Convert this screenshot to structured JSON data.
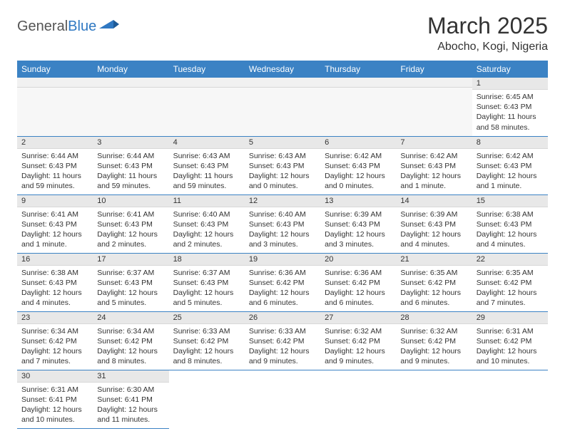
{
  "brand": {
    "part1": "General",
    "part2": "Blue",
    "color_general": "#555555",
    "color_blue": "#2f78c2"
  },
  "title": "March 2025",
  "location": "Abocho, Kogi, Nigeria",
  "colors": {
    "header_bg": "#3b82c4",
    "header_text": "#ffffff",
    "grid_line": "#3b82c4",
    "daynum_bg": "#e8e8e8",
    "blank_bg": "#f1f1f1"
  },
  "weekdays": [
    "Sunday",
    "Monday",
    "Tuesday",
    "Wednesday",
    "Thursday",
    "Friday",
    "Saturday"
  ],
  "weeks": [
    [
      null,
      null,
      null,
      null,
      null,
      null,
      {
        "n": "1",
        "sunrise": "Sunrise: 6:45 AM",
        "sunset": "Sunset: 6:43 PM",
        "daylight": "Daylight: 11 hours and 58 minutes."
      }
    ],
    [
      {
        "n": "2",
        "sunrise": "Sunrise: 6:44 AM",
        "sunset": "Sunset: 6:43 PM",
        "daylight": "Daylight: 11 hours and 59 minutes."
      },
      {
        "n": "3",
        "sunrise": "Sunrise: 6:44 AM",
        "sunset": "Sunset: 6:43 PM",
        "daylight": "Daylight: 11 hours and 59 minutes."
      },
      {
        "n": "4",
        "sunrise": "Sunrise: 6:43 AM",
        "sunset": "Sunset: 6:43 PM",
        "daylight": "Daylight: 11 hours and 59 minutes."
      },
      {
        "n": "5",
        "sunrise": "Sunrise: 6:43 AM",
        "sunset": "Sunset: 6:43 PM",
        "daylight": "Daylight: 12 hours and 0 minutes."
      },
      {
        "n": "6",
        "sunrise": "Sunrise: 6:42 AM",
        "sunset": "Sunset: 6:43 PM",
        "daylight": "Daylight: 12 hours and 0 minutes."
      },
      {
        "n": "7",
        "sunrise": "Sunrise: 6:42 AM",
        "sunset": "Sunset: 6:43 PM",
        "daylight": "Daylight: 12 hours and 1 minute."
      },
      {
        "n": "8",
        "sunrise": "Sunrise: 6:42 AM",
        "sunset": "Sunset: 6:43 PM",
        "daylight": "Daylight: 12 hours and 1 minute."
      }
    ],
    [
      {
        "n": "9",
        "sunrise": "Sunrise: 6:41 AM",
        "sunset": "Sunset: 6:43 PM",
        "daylight": "Daylight: 12 hours and 1 minute."
      },
      {
        "n": "10",
        "sunrise": "Sunrise: 6:41 AM",
        "sunset": "Sunset: 6:43 PM",
        "daylight": "Daylight: 12 hours and 2 minutes."
      },
      {
        "n": "11",
        "sunrise": "Sunrise: 6:40 AM",
        "sunset": "Sunset: 6:43 PM",
        "daylight": "Daylight: 12 hours and 2 minutes."
      },
      {
        "n": "12",
        "sunrise": "Sunrise: 6:40 AM",
        "sunset": "Sunset: 6:43 PM",
        "daylight": "Daylight: 12 hours and 3 minutes."
      },
      {
        "n": "13",
        "sunrise": "Sunrise: 6:39 AM",
        "sunset": "Sunset: 6:43 PM",
        "daylight": "Daylight: 12 hours and 3 minutes."
      },
      {
        "n": "14",
        "sunrise": "Sunrise: 6:39 AM",
        "sunset": "Sunset: 6:43 PM",
        "daylight": "Daylight: 12 hours and 4 minutes."
      },
      {
        "n": "15",
        "sunrise": "Sunrise: 6:38 AM",
        "sunset": "Sunset: 6:43 PM",
        "daylight": "Daylight: 12 hours and 4 minutes."
      }
    ],
    [
      {
        "n": "16",
        "sunrise": "Sunrise: 6:38 AM",
        "sunset": "Sunset: 6:43 PM",
        "daylight": "Daylight: 12 hours and 4 minutes."
      },
      {
        "n": "17",
        "sunrise": "Sunrise: 6:37 AM",
        "sunset": "Sunset: 6:43 PM",
        "daylight": "Daylight: 12 hours and 5 minutes."
      },
      {
        "n": "18",
        "sunrise": "Sunrise: 6:37 AM",
        "sunset": "Sunset: 6:43 PM",
        "daylight": "Daylight: 12 hours and 5 minutes."
      },
      {
        "n": "19",
        "sunrise": "Sunrise: 6:36 AM",
        "sunset": "Sunset: 6:42 PM",
        "daylight": "Daylight: 12 hours and 6 minutes."
      },
      {
        "n": "20",
        "sunrise": "Sunrise: 6:36 AM",
        "sunset": "Sunset: 6:42 PM",
        "daylight": "Daylight: 12 hours and 6 minutes."
      },
      {
        "n": "21",
        "sunrise": "Sunrise: 6:35 AM",
        "sunset": "Sunset: 6:42 PM",
        "daylight": "Daylight: 12 hours and 6 minutes."
      },
      {
        "n": "22",
        "sunrise": "Sunrise: 6:35 AM",
        "sunset": "Sunset: 6:42 PM",
        "daylight": "Daylight: 12 hours and 7 minutes."
      }
    ],
    [
      {
        "n": "23",
        "sunrise": "Sunrise: 6:34 AM",
        "sunset": "Sunset: 6:42 PM",
        "daylight": "Daylight: 12 hours and 7 minutes."
      },
      {
        "n": "24",
        "sunrise": "Sunrise: 6:34 AM",
        "sunset": "Sunset: 6:42 PM",
        "daylight": "Daylight: 12 hours and 8 minutes."
      },
      {
        "n": "25",
        "sunrise": "Sunrise: 6:33 AM",
        "sunset": "Sunset: 6:42 PM",
        "daylight": "Daylight: 12 hours and 8 minutes."
      },
      {
        "n": "26",
        "sunrise": "Sunrise: 6:33 AM",
        "sunset": "Sunset: 6:42 PM",
        "daylight": "Daylight: 12 hours and 9 minutes."
      },
      {
        "n": "27",
        "sunrise": "Sunrise: 6:32 AM",
        "sunset": "Sunset: 6:42 PM",
        "daylight": "Daylight: 12 hours and 9 minutes."
      },
      {
        "n": "28",
        "sunrise": "Sunrise: 6:32 AM",
        "sunset": "Sunset: 6:42 PM",
        "daylight": "Daylight: 12 hours and 9 minutes."
      },
      {
        "n": "29",
        "sunrise": "Sunrise: 6:31 AM",
        "sunset": "Sunset: 6:42 PM",
        "daylight": "Daylight: 12 hours and 10 minutes."
      }
    ],
    [
      {
        "n": "30",
        "sunrise": "Sunrise: 6:31 AM",
        "sunset": "Sunset: 6:41 PM",
        "daylight": "Daylight: 12 hours and 10 minutes."
      },
      {
        "n": "31",
        "sunrise": "Sunrise: 6:30 AM",
        "sunset": "Sunset: 6:41 PM",
        "daylight": "Daylight: 12 hours and 11 minutes."
      },
      null,
      null,
      null,
      null,
      null
    ]
  ]
}
